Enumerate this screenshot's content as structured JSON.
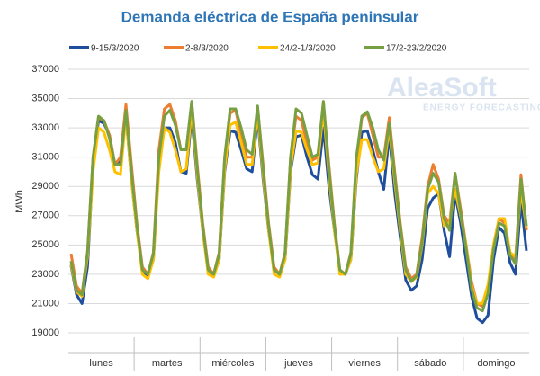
{
  "chart_data": {
    "type": "line",
    "title": "Demanda eléctrica de España peninsular",
    "ylabel": "MWh",
    "watermark": [
      "AleaSoft",
      "ENERGY FORECASTING"
    ],
    "categories": [
      "lunes",
      "martes",
      "miércoles",
      "jueves",
      "viernes",
      "sábado",
      "domingo"
    ],
    "ylim": [
      19000,
      37000
    ],
    "yticks": [
      19000,
      21000,
      23000,
      25000,
      27000,
      29000,
      31000,
      33000,
      35000,
      37000
    ],
    "grid": true,
    "legend": "top",
    "series": [
      {
        "name": "9-15/3/2020",
        "color": "#1f4e9c",
        "values": [
          [
            23600,
            21600,
            21000,
            23500,
            30500,
            33500,
            33300,
            32500,
            30500,
            30700,
            33800,
            29500
          ],
          [
            26000,
            23200,
            22900,
            24000,
            30500,
            33000,
            33000,
            32000,
            30000,
            29900,
            33800,
            29500
          ],
          [
            26000,
            23200,
            22900,
            24000,
            30000,
            32800,
            32700,
            31500,
            30200,
            30000,
            33700,
            29500
          ],
          [
            26000,
            23300,
            23000,
            24000,
            30000,
            32400,
            32500,
            31000,
            29800,
            29500,
            33000,
            29000
          ],
          [
            26000,
            23200,
            23000,
            24000,
            29500,
            32700,
            32800,
            31500,
            30000,
            28800,
            32600,
            28500
          ],
          [
            25500,
            22600,
            21900,
            22200,
            24000,
            27500,
            28200,
            28500,
            26000,
            24200,
            28500,
            26500
          ],
          [
            24000,
            21500,
            20000,
            19700,
            20200,
            24000,
            26200,
            25800,
            23800,
            23000,
            28000,
            24600
          ]
        ]
      },
      {
        "name": "2-8/3/2020",
        "color": "#ed7d31",
        "values": [
          [
            24400,
            22200,
            21700,
            24500,
            31000,
            33700,
            33500,
            32500,
            30500,
            31000,
            34600,
            30500
          ],
          [
            26500,
            23500,
            23000,
            24500,
            31500,
            34300,
            34600,
            33500,
            31500,
            31500,
            34800,
            30500
          ],
          [
            26500,
            23500,
            23000,
            24500,
            31000,
            34000,
            34200,
            32500,
            31000,
            31000,
            34400,
            30500
          ],
          [
            26500,
            23500,
            23000,
            24500,
            31000,
            33800,
            33500,
            32000,
            30800,
            31000,
            34800,
            30500
          ],
          [
            26500,
            23300,
            23000,
            24500,
            30500,
            33700,
            34000,
            32500,
            31000,
            31000,
            33700,
            30000
          ],
          [
            26500,
            23500,
            22700,
            23000,
            25500,
            29000,
            30500,
            29500,
            27000,
            26500,
            29900,
            27500
          ],
          [
            25000,
            22500,
            21000,
            20800,
            22000,
            25000,
            26800,
            26500,
            24500,
            24000,
            29800,
            26000
          ]
        ]
      },
      {
        "name": "24/2-1/3/2020",
        "color": "#ffc000",
        "values": [
          [
            23700,
            21800,
            21500,
            24200,
            30000,
            33000,
            32700,
            31500,
            30000,
            29800,
            33800,
            29500
          ],
          [
            26000,
            23000,
            22700,
            24000,
            30000,
            33000,
            32700,
            31500,
            30000,
            30200,
            34300,
            29800
          ],
          [
            26000,
            23000,
            22800,
            24000,
            30200,
            33200,
            33400,
            32000,
            30500,
            30500,
            34000,
            29800
          ],
          [
            26000,
            23000,
            22800,
            24000,
            30200,
            32800,
            32700,
            31500,
            30500,
            30600,
            34200,
            29800
          ],
          [
            26000,
            23000,
            23000,
            24000,
            29800,
            32200,
            32200,
            31000,
            30000,
            30200,
            33000,
            29300
          ],
          [
            26000,
            23000,
            22500,
            22800,
            25000,
            28500,
            29000,
            28500,
            26300,
            26500,
            28800,
            27000
          ],
          [
            25000,
            22200,
            21000,
            21000,
            22300,
            25000,
            26800,
            26800,
            24500,
            24200,
            28700,
            26200
          ]
        ]
      },
      {
        "name": "17/2-23/2/2020",
        "color": "#77a043",
        "values": [
          [
            23900,
            21900,
            21600,
            24500,
            31000,
            33800,
            33500,
            32300,
            30500,
            30500,
            34200,
            30000
          ],
          [
            26300,
            23300,
            23000,
            24400,
            31000,
            33800,
            34200,
            33200,
            31500,
            31500,
            34800,
            30200
          ],
          [
            26300,
            23300,
            23000,
            24400,
            31000,
            34300,
            34300,
            33000,
            31500,
            31200,
            34500,
            30200
          ],
          [
            26300,
            23300,
            23000,
            24400,
            31000,
            34300,
            34000,
            32500,
            31000,
            31200,
            34800,
            30200
          ],
          [
            26300,
            23300,
            23000,
            24400,
            31000,
            33800,
            34100,
            33000,
            31500,
            30800,
            33300,
            29700
          ],
          [
            26300,
            23300,
            22500,
            22900,
            25200,
            28800,
            29900,
            29300,
            26800,
            26000,
            29900,
            27200
          ],
          [
            24800,
            22000,
            20700,
            20500,
            21700,
            24700,
            26500,
            26300,
            24300,
            23700,
            29500,
            26300
          ]
        ]
      }
    ]
  }
}
